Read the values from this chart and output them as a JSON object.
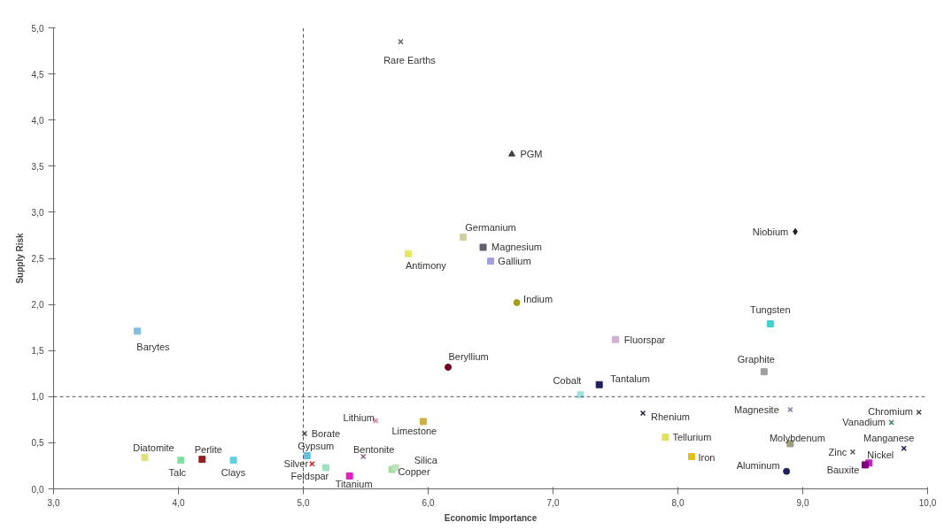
{
  "chart_data": {
    "type": "scatter",
    "xlabel": "Economic Importance",
    "ylabel": "Supply Risk",
    "xlim": [
      3,
      10
    ],
    "ylim": [
      0,
      5
    ],
    "xticks": [
      {
        "value": 3,
        "label": "3,0"
      },
      {
        "value": 4,
        "label": "4,0"
      },
      {
        "value": 5,
        "label": "5,0"
      },
      {
        "value": 6,
        "label": "6,0"
      },
      {
        "value": 7,
        "label": "7,0"
      },
      {
        "value": 8,
        "label": "8,0"
      },
      {
        "value": 9,
        "label": "9,0"
      },
      {
        "value": 10,
        "label": "10,0"
      }
    ],
    "yticks": [
      {
        "value": 0,
        "label": "0,0"
      },
      {
        "value": 0.5,
        "label": "0,5"
      },
      {
        "value": 1,
        "label": "1,0"
      },
      {
        "value": 1.5,
        "label": "1,5"
      },
      {
        "value": 2,
        "label": "2,0"
      },
      {
        "value": 2.5,
        "label": "2,5"
      },
      {
        "value": 3,
        "label": "3,0"
      },
      {
        "value": 3.5,
        "label": "3,5"
      },
      {
        "value": 4,
        "label": "4,0"
      },
      {
        "value": 4.5,
        "label": "4,5"
      },
      {
        "value": 5,
        "label": "5,0"
      }
    ],
    "grid": false,
    "legend": false,
    "ref_lines": [
      {
        "axis": "x",
        "value": 5,
        "line_style": "dashed",
        "color": "#555555"
      },
      {
        "axis": "y",
        "value": 1,
        "line_style": "dashed",
        "color": "#555555"
      }
    ],
    "series": [
      {
        "name": "Rare Earths",
        "color": "#707070",
        "marker": "cross",
        "x": [
          5.78
        ],
        "values": [
          4.85
        ]
      },
      {
        "name": "PGM",
        "color": "#404040",
        "marker": "triangle",
        "x": [
          6.67
        ],
        "values": [
          3.63
        ]
      },
      {
        "name": "Niobium",
        "color": "#202020",
        "marker": "diamond",
        "x": [
          8.94
        ],
        "values": [
          2.79
        ]
      },
      {
        "name": "Germanium",
        "color": "#d0d0a0",
        "marker": "square",
        "x": [
          6.28
        ],
        "values": [
          2.73
        ]
      },
      {
        "name": "Magnesium",
        "color": "#606070",
        "marker": "square",
        "x": [
          6.44
        ],
        "values": [
          2.62
        ]
      },
      {
        "name": "Gallium",
        "color": "#a0a0e0",
        "marker": "square",
        "x": [
          6.5
        ],
        "values": [
          2.47
        ]
      },
      {
        "name": "Antimony",
        "color": "#e8e860",
        "marker": "square",
        "x": [
          5.84
        ],
        "values": [
          2.55
        ]
      },
      {
        "name": "Indium",
        "color": "#a0a020",
        "marker": "circle",
        "x": [
          6.71
        ],
        "values": [
          2.02
        ]
      },
      {
        "name": "Tungsten",
        "color": "#40d0d0",
        "marker": "square",
        "x": [
          8.74
        ],
        "values": [
          1.79
        ]
      },
      {
        "name": "Fluorspar",
        "color": "#d0b0d0",
        "marker": "square",
        "x": [
          7.5
        ],
        "values": [
          1.62
        ]
      },
      {
        "name": "Beryllium",
        "color": "#700020",
        "marker": "circle",
        "x": [
          6.16
        ],
        "values": [
          1.32
        ]
      },
      {
        "name": "Graphite",
        "color": "#a0a0a0",
        "marker": "square",
        "x": [
          8.69
        ],
        "values": [
          1.27
        ]
      },
      {
        "name": "Tantalum",
        "color": "#202060",
        "marker": "square",
        "x": [
          7.37
        ],
        "values": [
          1.13
        ]
      },
      {
        "name": "Cobalt",
        "color": "#a0e0e0",
        "marker": "square",
        "x": [
          7.22
        ],
        "values": [
          1.02
        ]
      },
      {
        "name": "Barytes",
        "color": "#80c0e0",
        "marker": "square",
        "x": [
          3.67
        ],
        "values": [
          1.71
        ]
      },
      {
        "name": "Diatomite",
        "color": "#e0e080",
        "marker": "square",
        "x": [
          3.73
        ],
        "values": [
          0.34
        ]
      },
      {
        "name": "Talc",
        "color": "#80e0a0",
        "marker": "square",
        "x": [
          4.02
        ],
        "values": [
          0.31
        ]
      },
      {
        "name": "Perlite",
        "color": "#902020",
        "marker": "square",
        "x": [
          4.19
        ],
        "values": [
          0.32
        ]
      },
      {
        "name": "Clays",
        "color": "#60d0e0",
        "marker": "square",
        "x": [
          4.44
        ],
        "values": [
          0.31
        ]
      },
      {
        "name": "Borate",
        "color": "#404040",
        "marker": "cross",
        "x": [
          5.01
        ],
        "values": [
          0.6
        ]
      },
      {
        "name": "Gypsum",
        "color": "#60c0e0",
        "marker": "square",
        "x": [
          5.03
        ],
        "values": [
          0.36
        ]
      },
      {
        "name": "Silver",
        "color": "#e02020",
        "marker": "cross",
        "x": [
          5.07
        ],
        "values": [
          0.27
        ]
      },
      {
        "name": "Feldspar",
        "color": "#a0e0c0",
        "marker": "square",
        "x": [
          5.18
        ],
        "values": [
          0.23
        ]
      },
      {
        "name": "Titanium",
        "color": "#e020c0",
        "marker": "square",
        "x": [
          5.37
        ],
        "values": [
          0.14
        ]
      },
      {
        "name": "Bentonite",
        "color": "#806080",
        "marker": "cross",
        "x": [
          5.48
        ],
        "values": [
          0.35
        ]
      },
      {
        "name": "Lithium",
        "color": "#e080a0",
        "marker": "cross",
        "x": [
          5.58
        ],
        "values": [
          0.74
        ]
      },
      {
        "name": "Limestone",
        "color": "#d0b040",
        "marker": "square",
        "x": [
          5.96
        ],
        "values": [
          0.73
        ]
      },
      {
        "name": "Copper",
        "color": "#a0e0a0",
        "marker": "square",
        "x": [
          5.71
        ],
        "values": [
          0.21
        ]
      },
      {
        "name": "Silica",
        "color": "#c0e0c0",
        "marker": "square",
        "x": [
          5.74
        ],
        "values": [
          0.23
        ]
      },
      {
        "name": "Rhenium",
        "color": "#202040",
        "marker": "cross",
        "x": [
          7.72
        ],
        "values": [
          0.82
        ]
      },
      {
        "name": "Tellurium",
        "color": "#e0e060",
        "marker": "square",
        "x": [
          7.9
        ],
        "values": [
          0.56
        ]
      },
      {
        "name": "Iron",
        "color": "#e0c020",
        "marker": "square",
        "x": [
          8.11
        ],
        "values": [
          0.35
        ]
      },
      {
        "name": "Magnesite",
        "color": "#8080a0",
        "marker": "cross",
        "x": [
          8.9
        ],
        "values": [
          0.86
        ]
      },
      {
        "name": "Molybdenum",
        "color": "#a0a080",
        "marker": "square",
        "x": [
          8.9
        ],
        "values": [
          0.49
        ]
      },
      {
        "name": "Aluminum",
        "color": "#202060",
        "marker": "circle",
        "x": [
          8.87
        ],
        "values": [
          0.19
        ]
      },
      {
        "name": "Zinc",
        "color": "#606060",
        "marker": "cross",
        "x": [
          9.4
        ],
        "values": [
          0.4
        ]
      },
      {
        "name": "Nickel",
        "color": "#c020c0",
        "marker": "square",
        "x": [
          9.53
        ],
        "values": [
          0.28
        ]
      },
      {
        "name": "Bauxite",
        "color": "#800080",
        "marker": "square",
        "x": [
          9.5
        ],
        "values": [
          0.26
        ]
      },
      {
        "name": "Vanadium",
        "color": "#408060",
        "marker": "cross",
        "x": [
          9.71
        ],
        "values": [
          0.72
        ]
      },
      {
        "name": "Chromium",
        "color": "#404040",
        "marker": "cross",
        "x": [
          9.93
        ],
        "values": [
          0.83
        ]
      },
      {
        "name": "Manganese",
        "color": "#202060",
        "marker": "cross",
        "x": [
          9.81
        ],
        "values": [
          0.44
        ]
      }
    ]
  }
}
